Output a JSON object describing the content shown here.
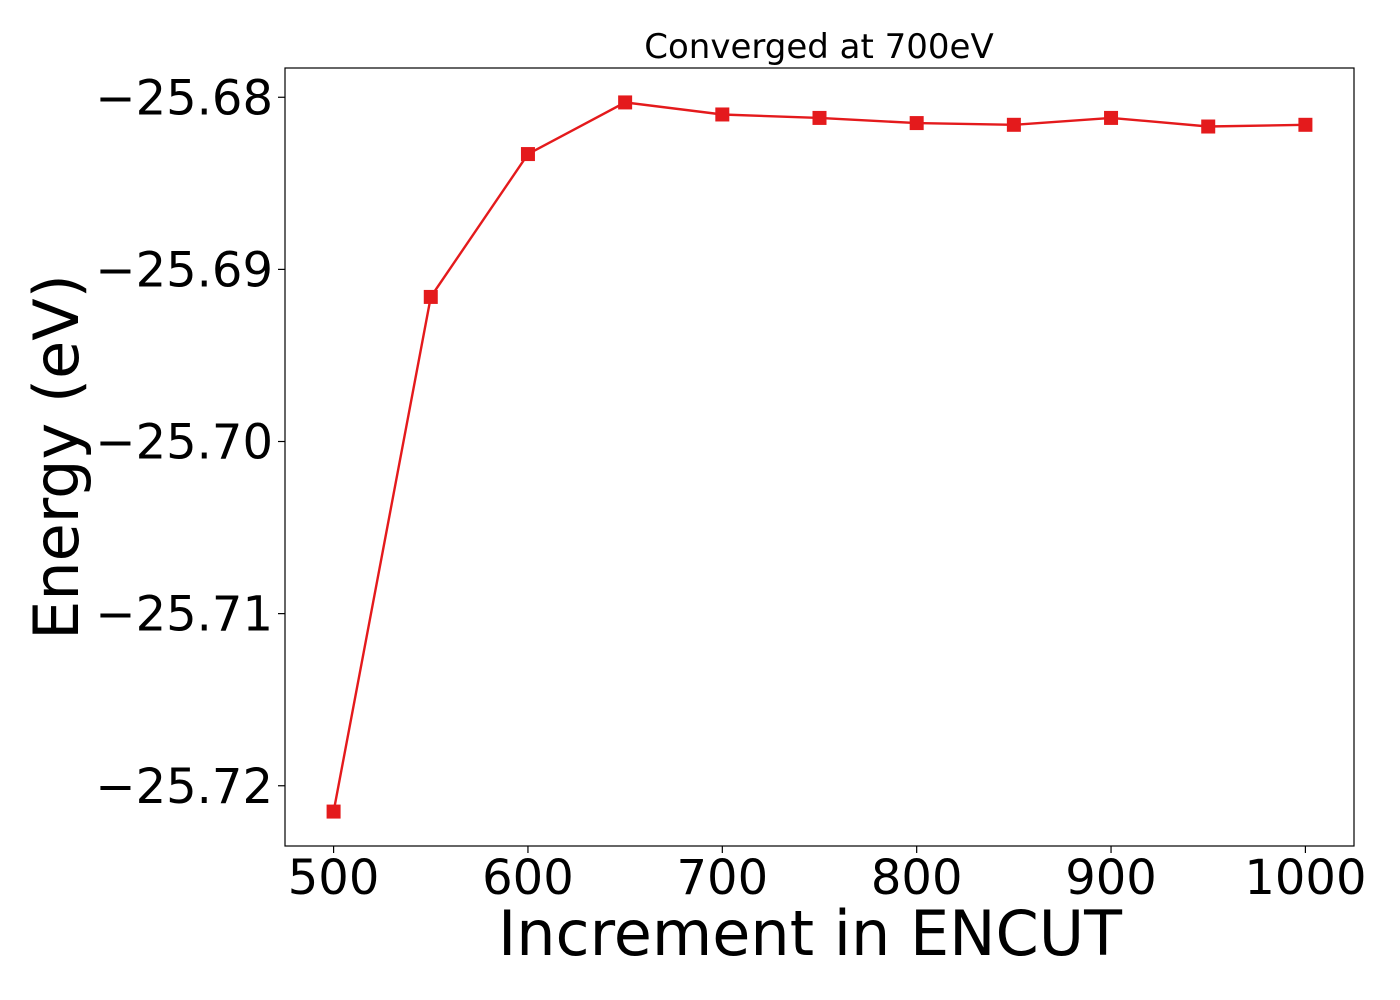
{
  "chart_data": {
    "type": "line",
    "title": "Converged at 700eV",
    "xlabel": "Increment in ENCUT",
    "ylabel": "Energy (eV)",
    "x": [
      500,
      550,
      600,
      650,
      700,
      750,
      800,
      850,
      900,
      950,
      1000
    ],
    "series": [
      {
        "values": [
          -25.7215,
          -25.6916,
          -25.6833,
          -25.6803,
          -25.681,
          -25.6812,
          -25.6815,
          -25.6816,
          -25.6812,
          -25.6817,
          -25.6816
        ],
        "color": "#e41a1c",
        "marker": "square"
      }
    ],
    "xlim": [
      475,
      1025
    ],
    "ylim": [
      -25.7235,
      -25.6783
    ],
    "xticks": [
      500,
      600,
      700,
      800,
      900,
      1000
    ],
    "xtick_labels": [
      "500",
      "600",
      "700",
      "800",
      "900",
      "1000"
    ],
    "yticks": [
      -25.68,
      -25.69,
      -25.7,
      -25.71,
      -25.72
    ],
    "ytick_labels": [
      "−25.68",
      "−25.69",
      "−25.70",
      "−25.71",
      "−25.72"
    ],
    "grid": false,
    "legend": false
  }
}
